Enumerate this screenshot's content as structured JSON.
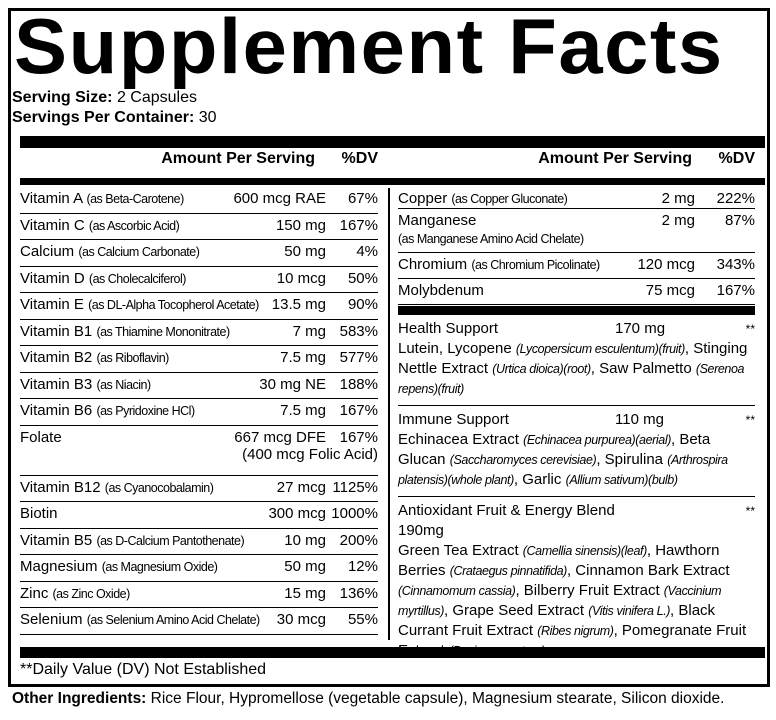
{
  "title": "Supplement Facts",
  "serving_size": {
    "label": "Serving Size:",
    "value": "2 Capsules"
  },
  "servings_per_container": {
    "label": "Servings Per Container:",
    "value": "30"
  },
  "header": {
    "amount": "Amount Per Serving",
    "dv": "%DV"
  },
  "left_rows": [
    {
      "name": "Vitamin A",
      "source": "(as Beta-Carotene)",
      "amount": "600 mcg RAE",
      "dv": "67%"
    },
    {
      "name": "Vitamin C",
      "source": "(as Ascorbic Acid)",
      "amount": "150 mg",
      "dv": "167%"
    },
    {
      "name": "Calcium",
      "source": "(as Calcium Carbonate)",
      "amount": "50 mg",
      "dv": "4%"
    },
    {
      "name": "Vitamin D",
      "source": "(as Cholecalciferol)",
      "amount": "10 mcg",
      "dv": "50%"
    },
    {
      "name": "Vitamin E",
      "source": "(as DL-Alpha Tocopherol Acetate)",
      "amount": "13.5 mg",
      "dv": "90%"
    },
    {
      "name": "Vitamin B1",
      "source": "(as Thiamine Mononitrate)",
      "amount": "7 mg",
      "dv": "583%"
    },
    {
      "name": "Vitamin B2",
      "source": "(as Riboflavin)",
      "amount": "7.5 mg",
      "dv": "577%"
    },
    {
      "name": "Vitamin B3",
      "source": "(as Niacin)",
      "amount": "30 mg NE",
      "dv": "188%"
    },
    {
      "name": "Vitamin B6",
      "source": "(as Pyridoxine HCl)",
      "amount": "7.5 mg",
      "dv": "167%"
    },
    {
      "name": "Folate",
      "source": "",
      "amount": "667 mcg DFE",
      "dv": "167%",
      "note": "(400 mcg Folic Acid)"
    },
    {
      "name": "Vitamin B12",
      "source": "(as Cyanocobalamin)",
      "amount": "27 mcg",
      "dv": "1125%"
    },
    {
      "name": "Biotin",
      "source": "",
      "amount": "300 mcg",
      "dv": "1000%"
    },
    {
      "name": "Vitamin B5",
      "source": "(as D-Calcium Pantothenate)",
      "amount": "10 mg",
      "dv": "200%"
    },
    {
      "name": "Magnesium",
      "source": "(as Magnesium Oxide)",
      "amount": "50 mg",
      "dv": "12%"
    },
    {
      "name": "Zinc",
      "source": "(as Zinc Oxide)",
      "amount": "15 mg",
      "dv": "136%"
    },
    {
      "name": "Selenium",
      "source": "(as Selenium Amino Acid Chelate)",
      "amount": "30 mcg",
      "dv": "55%"
    }
  ],
  "right_rows": [
    {
      "name": "Copper",
      "source": "(as Copper Gluconate)",
      "amount": "2 mg",
      "dv": "222%"
    },
    {
      "name": "Manganese",
      "source": "(as Manganese Amino Acid Chelate)",
      "amount": "2 mg",
      "dv": "87%"
    },
    {
      "name": "Chromium",
      "source": "(as Chromium Picolinate)",
      "amount": "120 mcg",
      "dv": "343%"
    },
    {
      "name": "Molybdenum",
      "source": "",
      "amount": "75 mcg",
      "dv": "167%"
    }
  ],
  "blends": [
    {
      "name": "Health Support",
      "amount": "170 mg",
      "dv": "**",
      "parts": [
        [
          "Lutein, Lycopene ",
          "(Lycopersicum esculentum)(fruit)"
        ],
        [
          ", Stinging Nettle Extract ",
          "(Urtica dioica)(root)"
        ],
        [
          ", Saw Palmetto ",
          "(Serenoa repens)(fruit)"
        ]
      ]
    },
    {
      "name": "Immune Support",
      "amount": "110 mg",
      "dv": "**",
      "parts": [
        [
          "Echinacea Extract ",
          "(Echinacea purpurea)(aerial)"
        ],
        [
          ", Beta Glucan ",
          "(Saccharomyces cerevisiae)"
        ],
        [
          ", Spirulina ",
          "(Arthrospira platensis)(whole plant)"
        ],
        [
          ", Garlic ",
          "(Allium sativum)(bulb)"
        ]
      ]
    },
    {
      "name": "Antioxidant Fruit & Energy Blend  190mg",
      "amount": "",
      "dv": "**",
      "parts": [
        [
          "Green Tea Extract ",
          "(Camellia sinensis)(leaf)"
        ],
        [
          ", Hawthorn Berries ",
          "(Crataegus pinnatifida)"
        ],
        [
          ", Cinnamon Bark Extract ",
          "(Cinnamomum cassia)"
        ],
        [
          ", Bilberry Fruit Extract ",
          "(Vaccinium myrtillus)"
        ],
        [
          ", Grape Seed Extract ",
          "(Vitis vinifera L.)"
        ],
        [
          ", Black Currant Fruit Extract ",
          "(Ribes nigrum)"
        ],
        [
          ", Pomegranate Fruit Extract ",
          "(Punica granatum)"
        ]
      ]
    }
  ],
  "footnote": "**Daily Value (DV) Not Established",
  "other_ingredients": {
    "label": "Other Ingredients:",
    "value": "Rice Flour, Hypromellose (vegetable capsule), Magnesium stearate, Silicon dioxide."
  }
}
